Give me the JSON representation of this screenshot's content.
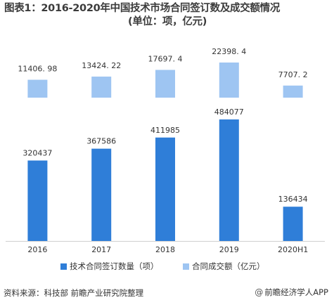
{
  "title": {
    "line1": "图表1：2016-2020年中国技术市场合同签订数及成交额情况",
    "line2": "(单位：项，亿元)"
  },
  "chart_data": {
    "type": "bar",
    "layout": "split-panels",
    "categories": [
      "2016",
      "2017",
      "2018",
      "2019",
      "2020H1"
    ],
    "series": [
      {
        "name": "技术合同签订数量（项）",
        "panel": "bottom",
        "color": "#2f7ed8",
        "values": [
          320437,
          367586,
          411985,
          484077,
          136434
        ],
        "labels": [
          "320437",
          "367586",
          "411985",
          "484077",
          "136434"
        ]
      },
      {
        "name": "合同成交额（亿元）",
        "panel": "top",
        "color": "#9ec5f2",
        "values": [
          11406.98,
          13424.22,
          17697.4,
          22398.4,
          7707.2
        ],
        "labels": [
          "11406. 98",
          "13424. 22",
          "17697. 4",
          "22398. 4",
          "7707. 2"
        ]
      }
    ],
    "legend": "bottom",
    "grid": false,
    "xlabel": "",
    "ylabel": ""
  },
  "footer": {
    "source": "资料来源：科技部 前瞻产业研究院整理",
    "brand_at": "@",
    "brand": "前瞻经济学人APP"
  }
}
